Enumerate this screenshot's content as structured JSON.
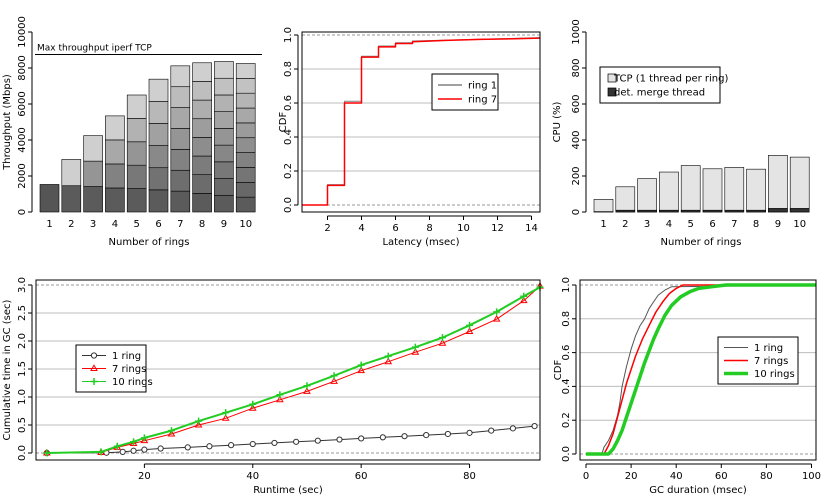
{
  "chart_data": [
    {
      "id": "throughput",
      "type": "bar",
      "subtype": "stacked",
      "xlabel": "Number of rings",
      "ylabel": "Throughput (Mbps)",
      "ylim": [
        0,
        10000
      ],
      "yticks": [
        0,
        2000,
        4000,
        6000,
        8000,
        10000
      ],
      "categories": [
        "1",
        "2",
        "3",
        "4",
        "5",
        "6",
        "7",
        "8",
        "9",
        "10"
      ],
      "totals": [
        1530,
        2920,
        4240,
        5340,
        6500,
        7380,
        8120,
        8290,
        8360,
        8250
      ],
      "reference_line": {
        "label": "Max throughput iperf TCP",
        "value": 8750
      },
      "stack_color_dark": "#555555",
      "stack_color_light": "#cfcfcf"
    },
    {
      "id": "latency_cdf",
      "type": "line",
      "step": true,
      "xlabel": "Latency (msec)",
      "ylabel": "CDF",
      "xlim": [
        0.5,
        14.5
      ],
      "xticks": [
        2,
        4,
        6,
        8,
        10,
        12,
        14
      ],
      "ylim": [
        0,
        1
      ],
      "yticks": [
        "0.0",
        "0.2",
        "0.4",
        "0.6",
        "0.8",
        "1.0"
      ],
      "grid": true,
      "legend_position": "center",
      "series": [
        {
          "name": "ring 1",
          "color": "#808080",
          "width": 1,
          "points": [
            [
              0.5,
              0
            ],
            [
              2,
              0
            ],
            [
              2,
              0.12
            ],
            [
              3,
              0.12
            ],
            [
              3,
              0.61
            ],
            [
              4,
              0.61
            ],
            [
              4,
              0.875
            ],
            [
              5,
              0.875
            ],
            [
              5,
              0.935
            ],
            [
              6,
              0.935
            ],
            [
              6,
              0.955
            ],
            [
              7,
              0.955
            ],
            [
              7,
              0.965
            ],
            [
              9,
              0.97
            ],
            [
              11,
              0.975
            ],
            [
              13,
              0.98
            ],
            [
              14.5,
              0.985
            ]
          ]
        },
        {
          "name": "ring 7",
          "color": "#ff0000",
          "width": 1.5,
          "points": [
            [
              0.5,
              0
            ],
            [
              2,
              0
            ],
            [
              2,
              0.115
            ],
            [
              3,
              0.115
            ],
            [
              3,
              0.6
            ],
            [
              4,
              0.6
            ],
            [
              4,
              0.87
            ],
            [
              5,
              0.87
            ],
            [
              5,
              0.93
            ],
            [
              6,
              0.93
            ],
            [
              6,
              0.95
            ],
            [
              7,
              0.95
            ],
            [
              7,
              0.96
            ],
            [
              9,
              0.968
            ],
            [
              11,
              0.974
            ],
            [
              13,
              0.978
            ],
            [
              14.5,
              0.982
            ]
          ]
        }
      ]
    },
    {
      "id": "cpu",
      "type": "bar",
      "subtype": "stacked",
      "xlabel": "Number of rings",
      "ylabel": "CPU (%)",
      "ylim": [
        0,
        1000
      ],
      "yticks": [
        0,
        200,
        400,
        600,
        800,
        1000
      ],
      "categories": [
        "1",
        "2",
        "3",
        "4",
        "5",
        "6",
        "7",
        "8",
        "9",
        "10"
      ],
      "legend_position": "top-left",
      "series": [
        {
          "name": "TCP (1 thread per ring)",
          "color": "#e4e4e4",
          "values": [
            70,
            140,
            185,
            222,
            258,
            240,
            248,
            238,
            315,
            305
          ]
        },
        {
          "name": "det. merge thread",
          "color": "#333333",
          "values": [
            2,
            10,
            10,
            10,
            10,
            10,
            10,
            10,
            20,
            20
          ]
        }
      ]
    },
    {
      "id": "gc_cumulative",
      "type": "line",
      "xlabel": "Runtime (sec)",
      "ylabel": "Cumulative time in GC (sec)",
      "xlim": [
        0,
        93
      ],
      "xticks": [
        20,
        40,
        60,
        80
      ],
      "ylim": [
        0,
        3
      ],
      "yticks": [
        "0.0",
        "0.5",
        "1.0",
        "1.5",
        "2.0",
        "2.5",
        "3.0"
      ],
      "grid": true,
      "legend_position": "left",
      "series": [
        {
          "name": "1 ring",
          "color": "#333333",
          "marker": "circle",
          "points": [
            [
              2,
              0
            ],
            [
              13,
              0.005
            ],
            [
              16,
              0.02
            ],
            [
              18,
              0.04
            ],
            [
              20,
              0.06
            ],
            [
              23,
              0.08
            ],
            [
              28,
              0.1
            ],
            [
              32,
              0.12
            ],
            [
              36,
              0.14
            ],
            [
              40,
              0.16
            ],
            [
              44,
              0.18
            ],
            [
              48,
              0.2
            ],
            [
              52,
              0.22
            ],
            [
              56,
              0.24
            ],
            [
              60,
              0.26
            ],
            [
              64,
              0.28
            ],
            [
              68,
              0.3
            ],
            [
              72,
              0.32
            ],
            [
              76,
              0.34
            ],
            [
              80,
              0.36
            ],
            [
              84,
              0.4
            ],
            [
              88,
              0.44
            ],
            [
              92,
              0.48
            ]
          ]
        },
        {
          "name": "7 rings",
          "color": "#ff0000",
          "marker": "triangle",
          "points": [
            [
              2,
              0
            ],
            [
              12,
              0.01
            ],
            [
              15,
              0.1
            ],
            [
              18,
              0.17
            ],
            [
              20,
              0.22
            ],
            [
              25,
              0.34
            ],
            [
              30,
              0.5
            ],
            [
              35,
              0.62
            ],
            [
              40,
              0.8
            ],
            [
              45,
              0.95
            ],
            [
              50,
              1.1
            ],
            [
              55,
              1.28
            ],
            [
              60,
              1.47
            ],
            [
              65,
              1.63
            ],
            [
              70,
              1.8
            ],
            [
              75,
              1.96
            ],
            [
              80,
              2.17
            ],
            [
              85,
              2.39
            ],
            [
              90,
              2.72
            ],
            [
              93,
              2.98
            ]
          ]
        },
        {
          "name": "10 rings",
          "color": "#22cc22",
          "marker": "plus",
          "width": 2,
          "points": [
            [
              2,
              0
            ],
            [
              12,
              0.02
            ],
            [
              15,
              0.12
            ],
            [
              18,
              0.2
            ],
            [
              20,
              0.27
            ],
            [
              25,
              0.4
            ],
            [
              30,
              0.57
            ],
            [
              35,
              0.72
            ],
            [
              40,
              0.87
            ],
            [
              45,
              1.04
            ],
            [
              50,
              1.2
            ],
            [
              55,
              1.38
            ],
            [
              60,
              1.57
            ],
            [
              65,
              1.73
            ],
            [
              70,
              1.89
            ],
            [
              75,
              2.06
            ],
            [
              80,
              2.28
            ],
            [
              85,
              2.52
            ],
            [
              90,
              2.8
            ],
            [
              93,
              2.96
            ]
          ]
        }
      ]
    },
    {
      "id": "gc_cdf",
      "type": "line",
      "step": true,
      "xlabel": "GC duration (msec)",
      "ylabel": "CDF",
      "xlim": [
        0,
        102
      ],
      "xticks": [
        0,
        20,
        40,
        60,
        80,
        100
      ],
      "ylim": [
        0,
        1
      ],
      "yticks": [
        "0.0",
        "0.2",
        "0.4",
        "0.6",
        "0.8",
        "1.0"
      ],
      "grid": true,
      "legend_position": "right",
      "series": [
        {
          "name": "1 ring",
          "color": "#555555",
          "width": 1,
          "points": [
            [
              0,
              0
            ],
            [
              7,
              0
            ],
            [
              8,
              0.04
            ],
            [
              10,
              0.08
            ],
            [
              12,
              0.14
            ],
            [
              14,
              0.23
            ],
            [
              15,
              0.3
            ],
            [
              16,
              0.4
            ],
            [
              18,
              0.52
            ],
            [
              20,
              0.62
            ],
            [
              22,
              0.7
            ],
            [
              24,
              0.76
            ],
            [
              26,
              0.8
            ],
            [
              28,
              0.86
            ],
            [
              30,
              0.9
            ],
            [
              32,
              0.94
            ],
            [
              35,
              0.97
            ],
            [
              38,
              0.99
            ],
            [
              102,
              1.0
            ]
          ]
        },
        {
          "name": "7 rings",
          "color": "#ff0000",
          "width": 1.5,
          "points": [
            [
              0,
              0
            ],
            [
              8,
              0
            ],
            [
              10,
              0.05
            ],
            [
              12,
              0.12
            ],
            [
              14,
              0.22
            ],
            [
              16,
              0.32
            ],
            [
              18,
              0.42
            ],
            [
              20,
              0.5
            ],
            [
              22,
              0.58
            ],
            [
              25,
              0.68
            ],
            [
              28,
              0.76
            ],
            [
              31,
              0.84
            ],
            [
              34,
              0.9
            ],
            [
              37,
              0.95
            ],
            [
              40,
              0.98
            ],
            [
              43,
              1.0
            ],
            [
              102,
              1.0
            ]
          ]
        },
        {
          "name": "10 rings",
          "color": "#22cc22",
          "width": 3.5,
          "points": [
            [
              0,
              0
            ],
            [
              10,
              0
            ],
            [
              12,
              0.03
            ],
            [
              14,
              0.08
            ],
            [
              16,
              0.14
            ],
            [
              18,
              0.22
            ],
            [
              20,
              0.3
            ],
            [
              22,
              0.38
            ],
            [
              24,
              0.46
            ],
            [
              26,
              0.54
            ],
            [
              28,
              0.61
            ],
            [
              30,
              0.68
            ],
            [
              32,
              0.74
            ],
            [
              35,
              0.82
            ],
            [
              38,
              0.88
            ],
            [
              42,
              0.93
            ],
            [
              46,
              0.96
            ],
            [
              50,
              0.98
            ],
            [
              56,
              0.99
            ],
            [
              62,
              1.0
            ],
            [
              102,
              1.0
            ]
          ]
        }
      ]
    }
  ]
}
